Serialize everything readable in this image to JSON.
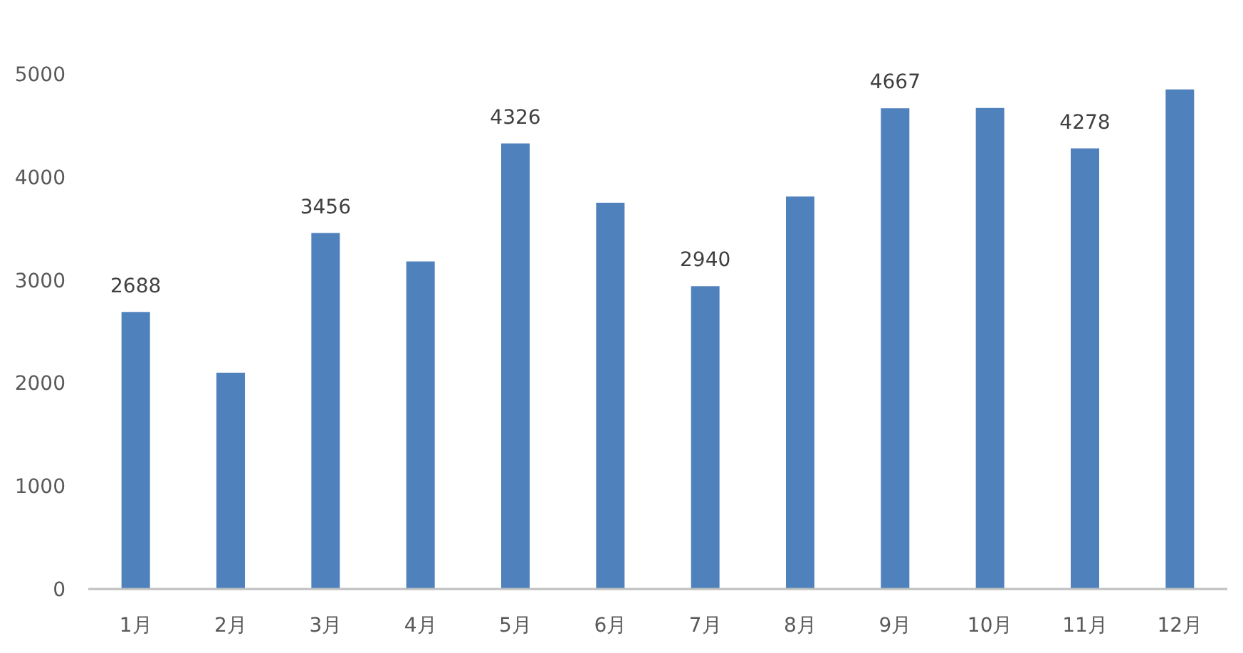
{
  "chart_data": {
    "type": "bar",
    "categories": [
      "1月",
      "2月",
      "3月",
      "4月",
      "5月",
      "6月",
      "7月",
      "8月",
      "9月",
      "10月",
      "11月",
      "12月"
    ],
    "values": [
      2688,
      2100,
      3456,
      3180,
      4326,
      3750,
      2940,
      3810,
      4667,
      4670,
      4278,
      4850
    ],
    "value_labels": [
      "2688",
      null,
      "3456",
      null,
      "4326",
      null,
      "2940",
      null,
      "4667",
      null,
      "4278",
      null
    ],
    "color": "#4f81bd",
    "ylim": [
      0,
      5000
    ],
    "yticks": [
      0,
      1000,
      2000,
      3000,
      4000,
      5000
    ],
    "grid": false
  }
}
